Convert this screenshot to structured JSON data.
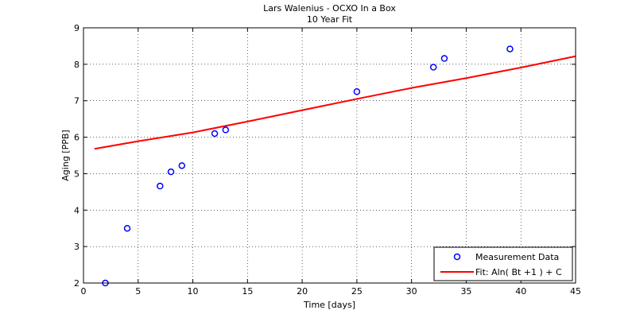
{
  "chart_data": {
    "type": "scatter",
    "title": "Lars Walenius - OCXO In a Box",
    "subtitle": "10 Year Fit",
    "xlabel": "Time [days]",
    "ylabel": "Aging [PPB]",
    "xlim": [
      0,
      45
    ],
    "ylim": [
      2,
      9
    ],
    "xticks": [
      0,
      5,
      10,
      15,
      20,
      25,
      30,
      35,
      40,
      45
    ],
    "yticks": [
      2,
      3,
      4,
      5,
      6,
      7,
      8,
      9
    ],
    "grid": true,
    "legend_position": "bottom-right",
    "series": [
      {
        "name": "Measurement Data",
        "kind": "markers",
        "marker": "circle",
        "color": "#0000ff",
        "x": [
          2,
          4,
          7,
          8,
          9,
          12,
          13,
          25,
          32,
          33,
          39
        ],
        "y": [
          2.0,
          3.5,
          4.66,
          5.05,
          5.22,
          6.1,
          6.2,
          7.25,
          7.92,
          8.16,
          8.42
        ]
      },
      {
        "name": "Fit: Aln( Bt +1 ) + C",
        "kind": "line",
        "color": "#ff0000",
        "x": [
          1,
          5,
          10,
          15,
          20,
          25,
          30,
          35,
          40,
          45
        ],
        "y": [
          5.68,
          5.89,
          6.13,
          6.43,
          6.74,
          7.05,
          7.35,
          7.62,
          7.91,
          8.22
        ]
      }
    ]
  }
}
